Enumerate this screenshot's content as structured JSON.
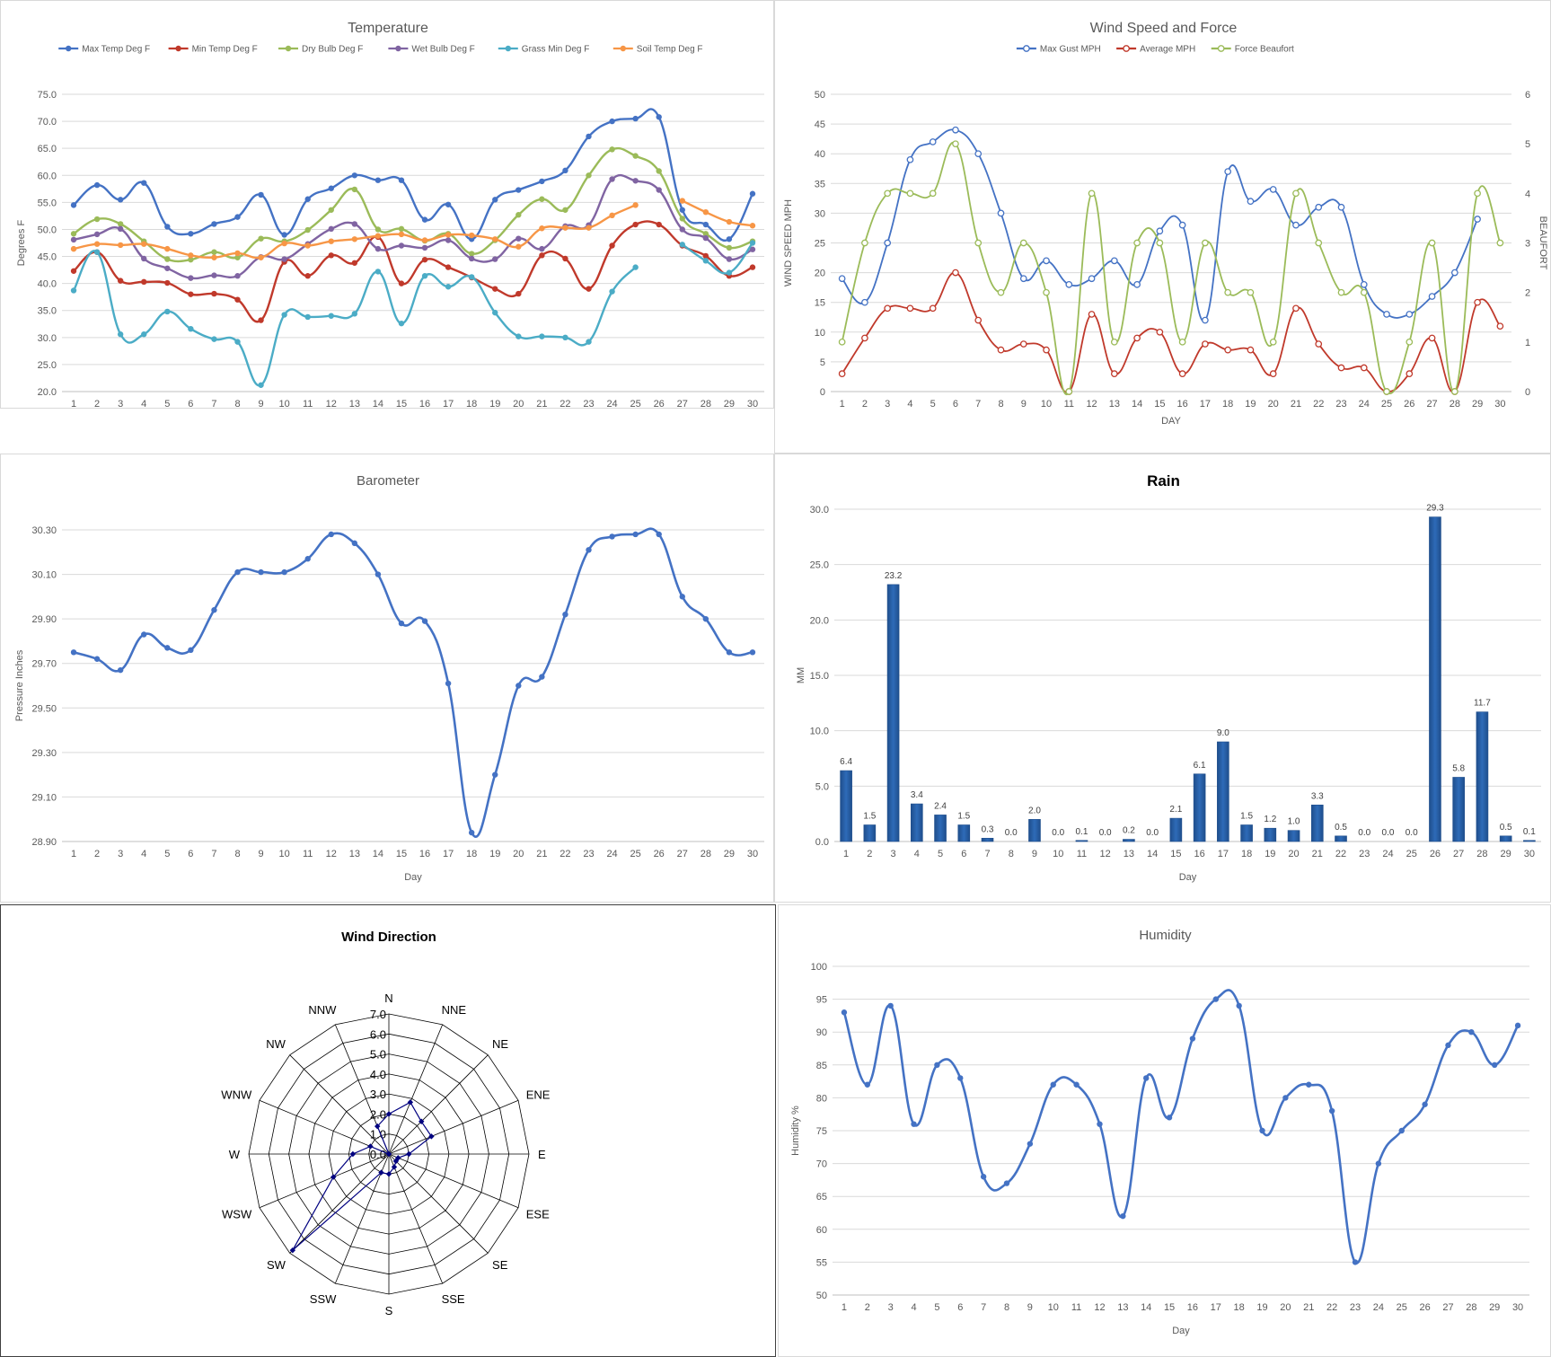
{
  "chart_data": [
    {
      "id": "temperature",
      "type": "line",
      "title": "Temperature",
      "xlabel": "Day",
      "ylabel": "Degrees F",
      "ylim": [
        20,
        75
      ],
      "ystep": 5,
      "ydecimals": 1,
      "legend_position": "top",
      "categories": [
        "1",
        "2",
        "3",
        "4",
        "5",
        "6",
        "7",
        "8",
        "9",
        "10",
        "11",
        "12",
        "13",
        "14",
        "15",
        "16",
        "17",
        "18",
        "19",
        "20",
        "21",
        "22",
        "23",
        "24",
        "25",
        "26",
        "27",
        "28",
        "29",
        "30"
      ],
      "series": [
        {
          "name": "Max Temp Deg F",
          "color": "#4472c4",
          "values": [
            54.5,
            58.2,
            55.5,
            58.6,
            50.5,
            49.2,
            51.0,
            52.3,
            56.4,
            49.0,
            55.6,
            57.6,
            60.0,
            59.1,
            59.1,
            51.8,
            54.6,
            48.2,
            55.5,
            57.3,
            58.9,
            60.9,
            67.2,
            70.0,
            70.5,
            70.8,
            53.6,
            50.9,
            48.2,
            56.6
          ]
        },
        {
          "name": "Min Temp Deg F",
          "color": "#c0392b",
          "values": [
            42.3,
            45.8,
            40.5,
            40.3,
            40.1,
            38.0,
            38.1,
            37.0,
            33.2,
            44.0,
            41.4,
            45.2,
            43.8,
            48.6,
            40.0,
            44.4,
            43.0,
            41.1,
            39.0,
            38.1,
            45.2,
            44.6,
            39.0,
            47.0,
            50.9,
            50.9,
            47.0,
            45.1,
            41.4,
            43.0
          ]
        },
        {
          "name": "Dry Bulb Deg F",
          "color": "#9bbb59",
          "values": [
            49.2,
            51.9,
            51.0,
            47.8,
            44.5,
            44.4,
            45.8,
            44.8,
            48.3,
            47.8,
            49.9,
            53.6,
            57.4,
            50.0,
            50.1,
            47.9,
            49.2,
            45.5,
            48.0,
            52.7,
            55.6,
            53.6,
            60.0,
            64.8,
            63.6,
            60.8,
            52.0,
            49.2,
            46.6,
            47.8
          ]
        },
        {
          "name": "Wet Bulb Deg F",
          "color": "#8064a2",
          "values": [
            48.1,
            49.1,
            50.1,
            44.6,
            42.8,
            41.0,
            41.5,
            41.4,
            44.9,
            44.5,
            47.3,
            50.1,
            51.0,
            46.4,
            47.0,
            46.6,
            48.0,
            44.6,
            44.5,
            48.3,
            46.4,
            50.6,
            50.8,
            59.3,
            59.0,
            57.3,
            50.0,
            48.4,
            44.5,
            46.3
          ]
        },
        {
          "name": "Grass Min Deg F",
          "color": "#4bacc6",
          "values": [
            38.7,
            45.8,
            30.6,
            30.6,
            34.8,
            31.6,
            29.7,
            29.2,
            21.2,
            34.2,
            33.8,
            34.0,
            34.4,
            42.2,
            32.6,
            41.4,
            39.4,
            41.2,
            34.6,
            30.2,
            30.2,
            30.0,
            29.2,
            38.5,
            43.0,
            null,
            47.2,
            44.2,
            42.0,
            47.5
          ]
        },
        {
          "name": "Soil Temp Deg F",
          "color": "#f79646",
          "values": [
            46.4,
            47.3,
            47.1,
            47.3,
            46.4,
            45.2,
            44.8,
            45.6,
            44.8,
            47.4,
            47.0,
            47.8,
            48.2,
            48.8,
            49.1,
            48.0,
            49.0,
            48.9,
            48.2,
            46.8,
            50.2,
            50.3,
            50.3,
            52.6,
            54.5,
            null,
            55.3,
            53.2,
            51.4,
            50.7
          ]
        }
      ]
    },
    {
      "id": "wind",
      "type": "line",
      "title": "Wind Speed and Force",
      "xlabel": "DAY",
      "ylabel": "WIND SPEED MPH",
      "y2label": "BEAUFORT",
      "ylim": [
        0,
        50
      ],
      "ystep": 5,
      "ydecimals": 0,
      "y2lim": [
        0,
        6
      ],
      "y2step": 1,
      "legend_position": "top",
      "categories": [
        "1",
        "2",
        "3",
        "4",
        "5",
        "6",
        "7",
        "8",
        "9",
        "10",
        "11",
        "12",
        "13",
        "14",
        "15",
        "16",
        "17",
        "18",
        "19",
        "20",
        "21",
        "22",
        "23",
        "24",
        "25",
        "26",
        "27",
        "28",
        "29",
        "30"
      ],
      "series": [
        {
          "name": "Max Gust MPH",
          "color": "#4472c4",
          "axis": "left",
          "values": [
            19,
            15,
            25,
            39,
            42,
            44,
            40,
            30,
            19,
            22,
            18,
            19,
            22,
            18,
            27,
            28,
            12,
            37,
            32,
            34,
            28,
            31,
            31,
            18,
            13,
            13,
            16,
            20,
            29,
            null
          ]
        },
        {
          "name": "Average MPH",
          "color": "#c0392b",
          "axis": "left",
          "values": [
            3,
            9,
            14,
            14,
            14,
            20,
            12,
            7,
            8,
            7,
            0,
            13,
            3,
            9,
            10,
            3,
            8,
            7,
            7,
            3,
            14,
            8,
            4,
            4,
            0,
            3,
            9,
            0,
            15,
            11
          ]
        },
        {
          "name": "Force Beaufort",
          "color": "#9bbb59",
          "axis": "right",
          "values": [
            1,
            3,
            4,
            4,
            4,
            5,
            3,
            2,
            3,
            2,
            0,
            4,
            1,
            3,
            3,
            1,
            3,
            2,
            2,
            1,
            4,
            3,
            2,
            2,
            0,
            1,
            3,
            0,
            4,
            3
          ]
        }
      ]
    },
    {
      "id": "barometer",
      "type": "line",
      "title": "Barometer",
      "xlabel": "Day",
      "ylabel": "Pressure Inches",
      "ylim": [
        28.9,
        30.3
      ],
      "yticks": [
        28.9,
        29.1,
        29.3,
        29.5,
        29.7,
        29.9,
        30.1,
        30.3
      ],
      "ydecimals": 2,
      "categories": [
        "1",
        "2",
        "3",
        "4",
        "5",
        "6",
        "7",
        "8",
        "9",
        "10",
        "11",
        "12",
        "13",
        "14",
        "15",
        "16",
        "17",
        "18",
        "19",
        "20",
        "21",
        "22",
        "23",
        "24",
        "25",
        "26",
        "27",
        "28",
        "29",
        "30"
      ],
      "series": [
        {
          "name": "Barometer",
          "color": "#4472c4",
          "values": [
            29.75,
            29.72,
            29.67,
            29.83,
            29.77,
            29.76,
            29.94,
            30.11,
            30.11,
            30.11,
            30.17,
            30.28,
            30.24,
            30.1,
            29.88,
            29.89,
            29.61,
            28.94,
            29.2,
            29.6,
            29.64,
            29.92,
            30.21,
            30.27,
            30.28,
            30.28,
            30.0,
            29.9,
            29.75,
            29.75
          ]
        }
      ]
    },
    {
      "id": "rain",
      "type": "bar",
      "title": "Rain",
      "xlabel": "Day",
      "ylabel": "MM",
      "ylim": [
        0,
        30
      ],
      "ystep": 5,
      "ydecimals": 1,
      "categories": [
        "1",
        "2",
        "3",
        "4",
        "5",
        "6",
        "7",
        "8",
        "9",
        "10",
        "11",
        "12",
        "13",
        "14",
        "15",
        "16",
        "17",
        "18",
        "19",
        "20",
        "21",
        "22",
        "23",
        "24",
        "25",
        "26",
        "27",
        "28",
        "29",
        "30"
      ],
      "values": [
        6.4,
        1.5,
        23.2,
        3.4,
        2.4,
        1.5,
        0.3,
        0.0,
        2.0,
        0.0,
        0.1,
        0.0,
        0.2,
        0.0,
        2.1,
        6.1,
        9.0,
        1.5,
        1.2,
        1.0,
        3.3,
        0.5,
        0.0,
        0.0,
        0.0,
        29.3,
        5.8,
        11.7,
        0.5,
        0.1
      ],
      "labels": [
        "6.4",
        "1.5",
        "23.2",
        "3.4",
        "2.4",
        "1.5",
        "0.3",
        "0.0",
        "2.0",
        "0.0",
        "0.1",
        "0.0",
        "0.2",
        "0.0",
        "2.1",
        "6.1",
        "9.0",
        "1.5",
        "1.2",
        "1.0",
        "3.3",
        "0.5",
        "0.0",
        "0.0",
        "0.0",
        "29.3",
        "5.8",
        "11.7",
        "0.5",
        "0.1"
      ],
      "color": "#2e6bb8"
    },
    {
      "id": "wind_direction",
      "type": "radar",
      "title": "Wind Direction",
      "rlim": [
        0,
        7
      ],
      "rticks": [
        "0.0",
        "1.0",
        "2.0",
        "3.0",
        "4.0",
        "5.0",
        "6.0",
        "7.0"
      ],
      "categories": [
        "N",
        "NNE",
        "NE",
        "ENE",
        "E",
        "ESE",
        "SE",
        "SSE",
        "S",
        "SSW",
        "SW",
        "WSW",
        "W",
        "WNW",
        "NW",
        "NNW"
      ],
      "values": [
        2.0,
        2.8,
        2.3,
        2.3,
        1.0,
        0.5,
        0.5,
        0.7,
        1.0,
        1.0,
        6.8,
        3.0,
        1.8,
        1.0,
        0.0,
        1.5
      ],
      "color": "#000080"
    },
    {
      "id": "humidity",
      "type": "line",
      "title": "Humidity",
      "xlabel": "Day",
      "ylabel": "Humidity %",
      "ylim": [
        50,
        100
      ],
      "ystep": 5,
      "ydecimals": 0,
      "categories": [
        "1",
        "2",
        "3",
        "4",
        "5",
        "6",
        "7",
        "8",
        "9",
        "10",
        "11",
        "12",
        "13",
        "14",
        "15",
        "16",
        "17",
        "18",
        "19",
        "20",
        "21",
        "22",
        "23",
        "24",
        "25",
        "26",
        "27",
        "28",
        "29",
        "30"
      ],
      "series": [
        {
          "name": "Humidity",
          "color": "#4472c4",
          "values": [
            93,
            82,
            94,
            76,
            85,
            83,
            68,
            67,
            73,
            82,
            82,
            76,
            62,
            83,
            77,
            89,
            95,
            94,
            75,
            80,
            82,
            78,
            55,
            70,
            75,
            79,
            88,
            90,
            85,
            91
          ]
        }
      ]
    }
  ]
}
